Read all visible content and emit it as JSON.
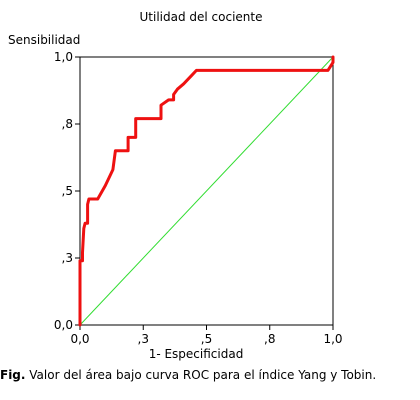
{
  "chart_data": {
    "type": "line",
    "title": "Utilidad del cociente",
    "xlabel": "1- Especificidad",
    "ylabel": "Sensibilidad",
    "xlim": [
      0,
      1
    ],
    "ylim": [
      0,
      1
    ],
    "x_ticks": [
      0,
      0.25,
      0.5,
      0.75,
      1
    ],
    "x_tick_labels": [
      "0,0",
      ",3",
      ",5",
      ",8",
      "1,0"
    ],
    "y_ticks": [
      0,
      0.25,
      0.5,
      0.75,
      1
    ],
    "y_tick_labels": [
      "0,0",
      ",3",
      ",5",
      ",8",
      "1,0"
    ],
    "grid": false,
    "series": [
      {
        "color": "#ee1111",
        "x": [
          0,
          0,
          0.01,
          0.01,
          0.015,
          0.02,
          0.03,
          0.03,
          0.035,
          0.07,
          0.1,
          0.13,
          0.14,
          0.17,
          0.19,
          0.19,
          0.22,
          0.22,
          0.25,
          0.32,
          0.32,
          0.35,
          0.37,
          0.37,
          0.385,
          0.41,
          0.42,
          0.44,
          0.46,
          0.47,
          0.98,
          1,
          1
        ],
        "values": [
          0,
          0.24,
          0.24,
          0.27,
          0.36,
          0.38,
          0.38,
          0.45,
          0.47,
          0.47,
          0.52,
          0.58,
          0.65,
          0.65,
          0.65,
          0.7,
          0.7,
          0.77,
          0.77,
          0.77,
          0.82,
          0.84,
          0.84,
          0.86,
          0.88,
          0.9,
          0.91,
          0.93,
          0.95,
          0.95,
          0.95,
          0.98,
          1
        ]
      },
      {
        "color": "#33dd33",
        "x": [
          0,
          1
        ],
        "values": [
          0,
          1
        ]
      }
    ]
  },
  "caption": {
    "label": "Fig.",
    "text": " Valor del área bajo curva ROC para el índice Yang y Tobin."
  }
}
